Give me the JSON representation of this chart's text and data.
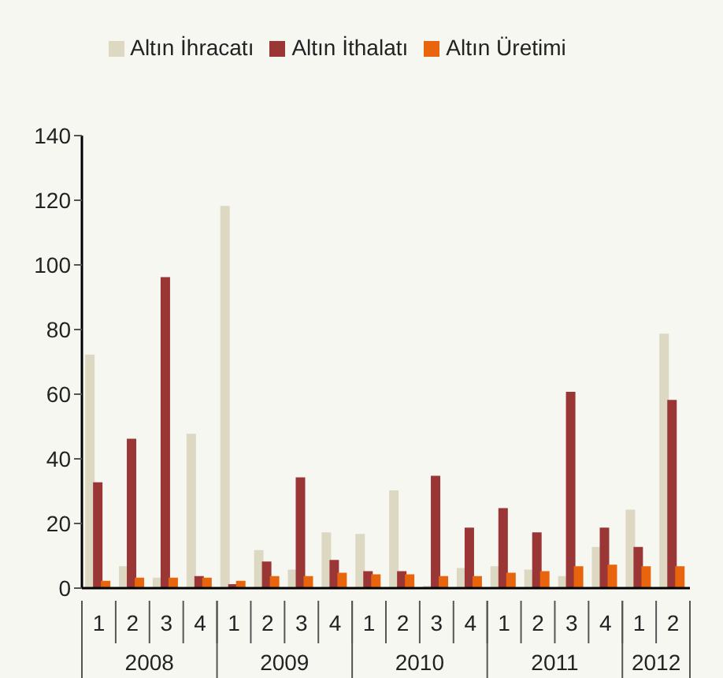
{
  "chart_data": {
    "type": "bar",
    "categories": [
      "1",
      "2",
      "3",
      "4",
      "1",
      "2",
      "3",
      "4",
      "1",
      "2",
      "3",
      "4",
      "1",
      "2",
      "3",
      "4",
      "1",
      "2"
    ],
    "annotations": [
      "2008",
      "2009",
      "2010",
      "2011",
      "2012"
    ],
    "series": [
      {
        "name": "Altın İhracatı",
        "color": "#ddd8c2",
        "values": [
          72,
          6.5,
          3,
          47.5,
          118,
          11.5,
          5.5,
          17,
          16.5,
          30,
          0.5,
          6,
          6.5,
          5.5,
          3.5,
          12.5,
          24,
          78.5
        ]
      },
      {
        "name": "Altın İthalatı",
        "color": "#9b3636",
        "values": [
          32.5,
          46,
          96,
          3.5,
          1,
          8,
          34,
          8.5,
          5,
          5,
          34.5,
          18.5,
          24.5,
          17,
          60.5,
          18.5,
          12.5,
          58
        ]
      },
      {
        "name": "Altın Üretimi",
        "color": "#e8650d",
        "values": [
          2,
          3,
          3,
          3,
          2,
          3.5,
          3.5,
          4.5,
          4,
          4,
          3.5,
          3.5,
          4.5,
          5,
          6.5,
          7,
          6.5,
          6.5
        ]
      }
    ],
    "ylim": [
      0,
      140
    ],
    "yticks": [
      0,
      20,
      40,
      60,
      80,
      100,
      120,
      140
    ],
    "grid": false,
    "legend": "top"
  }
}
